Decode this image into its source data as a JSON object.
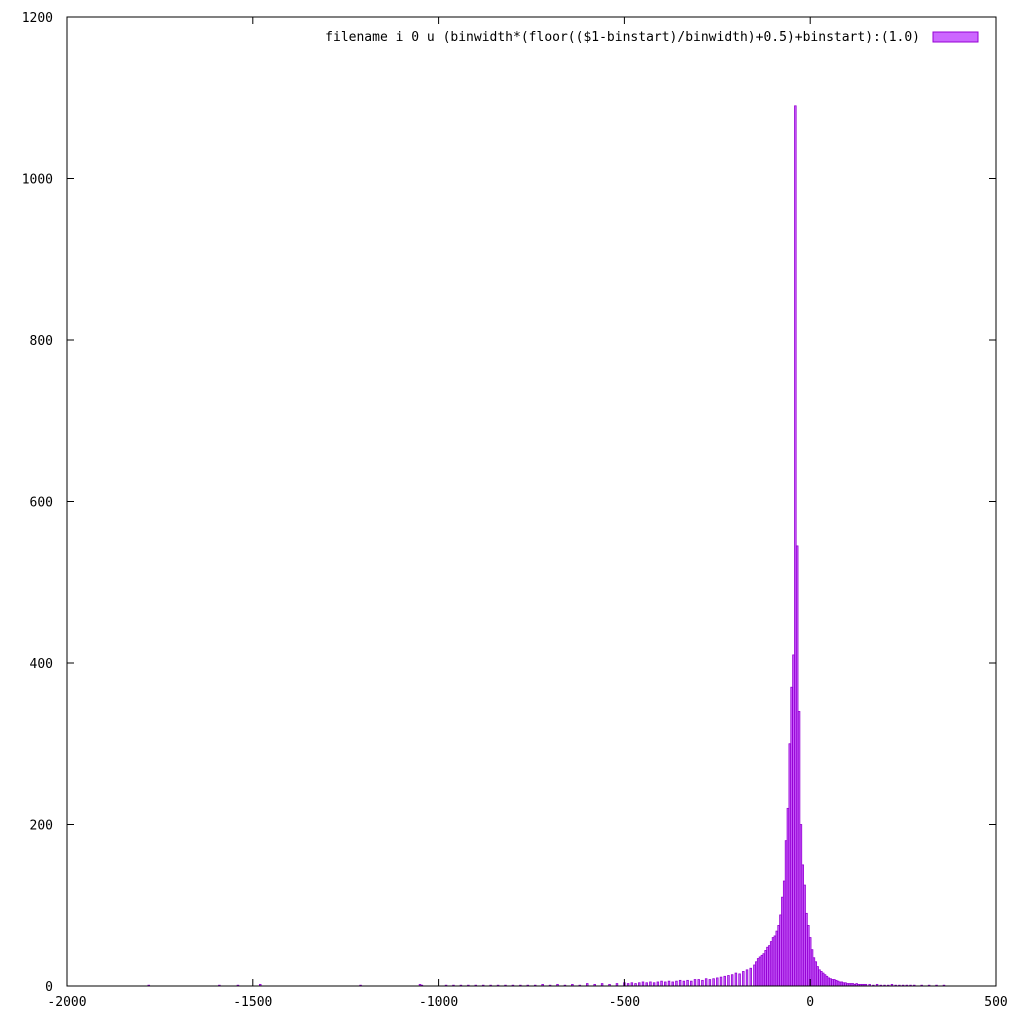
{
  "chart_data": {
    "type": "bar",
    "title": "",
    "xlabel": "",
    "ylabel": "",
    "xlim": [
      -2000,
      500
    ],
    "ylim": [
      0,
      1200
    ],
    "xticks": [
      -2000,
      -1500,
      -1000,
      -500,
      0,
      500
    ],
    "yticks": [
      0,
      200,
      400,
      600,
      800,
      1000,
      1200
    ],
    "grid": false,
    "legend_position": "top-right",
    "bin_width": 5,
    "colors": {
      "fill": "#cc66ff",
      "stroke": "#9400d3",
      "axis": "#000000"
    },
    "series": [
      {
        "name": "filename i 0 u (binwidth*(floor(($1-binstart)/binwidth)+0.5)+binstart):(1.0)",
        "x": [
          -1780,
          -1590,
          -1540,
          -1480,
          -1210,
          -1050,
          -1045,
          -980,
          -960,
          -940,
          -920,
          -900,
          -880,
          -860,
          -840,
          -820,
          -800,
          -780,
          -760,
          -740,
          -720,
          -700,
          -680,
          -660,
          -640,
          -620,
          -600,
          -580,
          -560,
          -540,
          -520,
          -500,
          -490,
          -480,
          -470,
          -460,
          -450,
          -440,
          -430,
          -420,
          -410,
          -400,
          -390,
          -380,
          -370,
          -360,
          -350,
          -340,
          -330,
          -320,
          -310,
          -300,
          -290,
          -280,
          -270,
          -260,
          -250,
          -240,
          -230,
          -220,
          -210,
          -200,
          -190,
          -180,
          -170,
          -160,
          -150,
          -145,
          -140,
          -135,
          -130,
          -125,
          -120,
          -115,
          -110,
          -105,
          -100,
          -95,
          -90,
          -85,
          -80,
          -75,
          -70,
          -65,
          -60,
          -55,
          -50,
          -45,
          -40,
          -35,
          -30,
          -25,
          -20,
          -15,
          -10,
          -5,
          0,
          5,
          10,
          15,
          20,
          25,
          30,
          35,
          40,
          45,
          50,
          55,
          60,
          65,
          70,
          75,
          80,
          85,
          90,
          95,
          100,
          105,
          110,
          115,
          120,
          125,
          130,
          135,
          140,
          145,
          150,
          160,
          170,
          180,
          190,
          200,
          210,
          220,
          230,
          240,
          250,
          260,
          270,
          280,
          300,
          320,
          340,
          360
        ],
        "values": [
          1,
          1,
          1,
          2,
          1,
          2,
          1,
          1,
          1,
          1,
          1,
          1,
          1,
          1,
          1,
          1,
          1,
          1,
          1,
          1,
          2,
          1,
          2,
          1,
          2,
          1,
          3,
          2,
          3,
          2,
          3,
          4,
          3,
          4,
          3,
          4,
          5,
          4,
          5,
          4,
          5,
          6,
          5,
          6,
          5,
          6,
          7,
          6,
          7,
          6,
          8,
          8,
          7,
          9,
          8,
          9,
          10,
          11,
          12,
          13,
          14,
          16,
          15,
          18,
          20,
          22,
          26,
          30,
          34,
          36,
          38,
          40,
          44,
          48,
          50,
          55,
          60,
          62,
          68,
          75,
          88,
          110,
          130,
          180,
          220,
          300,
          370,
          410,
          1090,
          545,
          340,
          200,
          150,
          125,
          90,
          75,
          60,
          45,
          35,
          30,
          24,
          20,
          18,
          16,
          14,
          12,
          10,
          9,
          8,
          8,
          7,
          6,
          5,
          5,
          4,
          4,
          3,
          3,
          3,
          3,
          2,
          3,
          2,
          2,
          2,
          2,
          2,
          2,
          1,
          2,
          1,
          1,
          1,
          2,
          1,
          1,
          1,
          1,
          1,
          1,
          1,
          1,
          1,
          1
        ]
      }
    ]
  }
}
